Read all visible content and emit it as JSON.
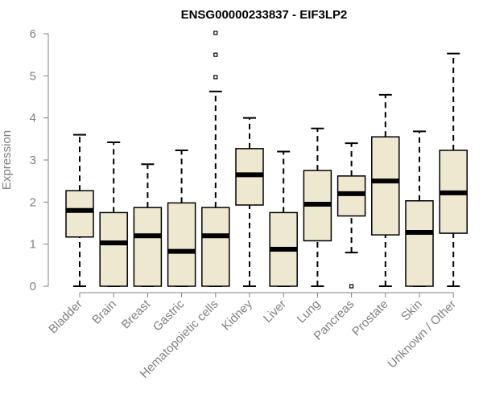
{
  "chart_data": {
    "type": "box",
    "title": "ENSG00000233837 - EIF3LP2",
    "xlabel": "",
    "ylabel": "Expression",
    "ylim": [
      0,
      6
    ],
    "yticks": [
      0,
      1,
      2,
      3,
      4,
      5,
      6
    ],
    "grid": false,
    "colors": {
      "box_fill": "#efe8d0",
      "stroke": "#000000",
      "axis": "#808080"
    },
    "categories": [
      "Bladder",
      "Brain",
      "Breast",
      "Gastric",
      "Hematopoietic cells",
      "Kidney",
      "Liver",
      "Lung",
      "Pancreas",
      "Prostate",
      "Skin",
      "Unknown / Other"
    ],
    "boxes": [
      {
        "whisker_low": 0,
        "q1": 1.17,
        "median": 1.8,
        "q3": 2.27,
        "whisker_high": 3.6,
        "outliers": []
      },
      {
        "whisker_low": 0,
        "q1": 0,
        "median": 1.03,
        "q3": 1.75,
        "whisker_high": 3.42,
        "outliers": []
      },
      {
        "whisker_low": 0,
        "q1": 0,
        "median": 1.2,
        "q3": 1.87,
        "whisker_high": 2.9,
        "outliers": []
      },
      {
        "whisker_low": 0,
        "q1": 0,
        "median": 0.83,
        "q3": 1.98,
        "whisker_high": 3.23,
        "outliers": []
      },
      {
        "whisker_low": 0,
        "q1": 0,
        "median": 1.2,
        "q3": 1.87,
        "whisker_high": 4.63,
        "outliers": [
          4.97,
          5.5,
          6.02
        ]
      },
      {
        "whisker_low": 0,
        "q1": 1.93,
        "median": 2.65,
        "q3": 3.27,
        "whisker_high": 4.0,
        "outliers": []
      },
      {
        "whisker_low": 0,
        "q1": 0,
        "median": 0.88,
        "q3": 1.75,
        "whisker_high": 3.2,
        "outliers": []
      },
      {
        "whisker_low": 0,
        "q1": 1.08,
        "median": 1.95,
        "q3": 2.75,
        "whisker_high": 3.75,
        "outliers": []
      },
      {
        "whisker_low": 0.8,
        "q1": 1.67,
        "median": 2.2,
        "q3": 2.62,
        "whisker_high": 3.4,
        "outliers": [
          0
        ]
      },
      {
        "whisker_low": 0,
        "q1": 1.22,
        "median": 2.5,
        "q3": 3.55,
        "whisker_high": 4.55,
        "outliers": []
      },
      {
        "whisker_low": 0,
        "q1": 0,
        "median": 1.28,
        "q3": 2.03,
        "whisker_high": 3.68,
        "outliers": []
      },
      {
        "whisker_low": 0,
        "q1": 1.26,
        "median": 2.22,
        "q3": 3.23,
        "whisker_high": 5.53,
        "outliers": []
      }
    ]
  }
}
